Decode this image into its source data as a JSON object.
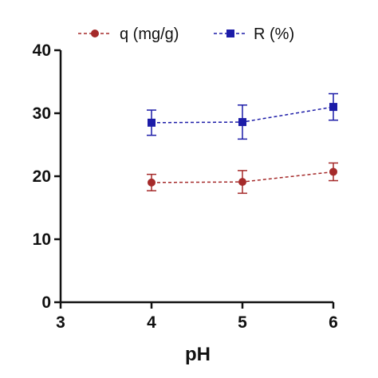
{
  "chart_data": {
    "type": "line",
    "xlabel": "pH",
    "ylabel": "",
    "xlim": [
      3,
      6
    ],
    "ylim": [
      0,
      40
    ],
    "x_ticks": [
      3,
      4,
      5,
      6
    ],
    "y_ticks": [
      0,
      10,
      20,
      30,
      40
    ],
    "grid": false,
    "legend_position": "top",
    "series": [
      {
        "name": "q (mg/g)",
        "color": "#a52a2a",
        "marker": "circle",
        "line_style": "dashed",
        "x": [
          4,
          5,
          6
        ],
        "y": [
          19.0,
          19.1,
          20.7
        ],
        "error": [
          1.3,
          1.8,
          1.4
        ]
      },
      {
        "name": "R (%)",
        "color": "#1c1ca8",
        "marker": "square",
        "line_style": "dashed",
        "x": [
          4,
          5,
          6
        ],
        "y": [
          28.5,
          28.6,
          31.0
        ],
        "error": [
          2.0,
          2.7,
          2.1
        ]
      }
    ]
  }
}
